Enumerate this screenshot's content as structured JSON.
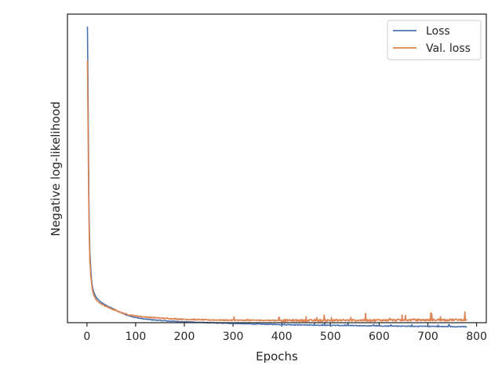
{
  "chart_data": {
    "type": "line",
    "title": "",
    "xlabel": "Epochs",
    "ylabel": "Negative log-likelihood",
    "xlim": [
      -40,
      820
    ],
    "ylim": [
      0,
      100
    ],
    "x_ticks": [
      0,
      100,
      200,
      300,
      400,
      500,
      600,
      700,
      800
    ],
    "y_ticks_shown": false,
    "grid": false,
    "legend": {
      "placement": "top-right",
      "entries": [
        "Loss",
        "Val. loss"
      ]
    },
    "series": [
      {
        "name": "Loss",
        "color": "#4c72b0",
        "x": [
          1,
          2,
          3,
          4,
          5,
          6,
          8,
          10,
          12,
          15,
          20,
          25,
          30,
          40,
          50,
          60,
          70,
          80,
          90,
          100,
          110,
          120,
          140,
          160,
          180,
          200,
          230,
          260,
          300,
          350,
          400,
          450,
          500,
          550,
          600,
          650,
          700,
          750,
          780
        ],
        "y": [
          96,
          80,
          60,
          40,
          30,
          23,
          17,
          13,
          11,
          9.5,
          8,
          7.2,
          6.5,
          5.5,
          4.8,
          4.0,
          3.2,
          2.6,
          2.1,
          1.7,
          1.4,
          1.15,
          0.85,
          0.6,
          0.42,
          0.3,
          0.12,
          -0.05,
          -0.25,
          -0.45,
          -0.6,
          -0.75,
          -0.85,
          -0.95,
          -1.05,
          -1.12,
          -1.2,
          -1.27,
          -1.3
        ]
      },
      {
        "name": "Val. loss",
        "color": "#dd8452",
        "x": [
          1,
          2,
          3,
          4,
          5,
          6,
          8,
          10,
          12,
          15,
          20,
          25,
          30,
          40,
          50,
          60,
          70,
          80,
          90,
          100,
          120,
          140,
          160,
          180,
          200,
          250,
          300,
          350,
          400,
          450,
          500,
          550,
          600,
          650,
          700,
          750,
          780
        ],
        "y": [
          85,
          68,
          50,
          35,
          26,
          20,
          15,
          12,
          10,
          8.5,
          7.2,
          6.5,
          6.0,
          5.2,
          4.5,
          3.9,
          3.3,
          2.8,
          2.45,
          2.2,
          1.85,
          1.6,
          1.4,
          1.25,
          1.1,
          0.9,
          0.8,
          0.78,
          0.72,
          0.72,
          0.75,
          0.78,
          0.82,
          0.85,
          0.88,
          0.92,
          0.95
        ]
      }
    ]
  }
}
